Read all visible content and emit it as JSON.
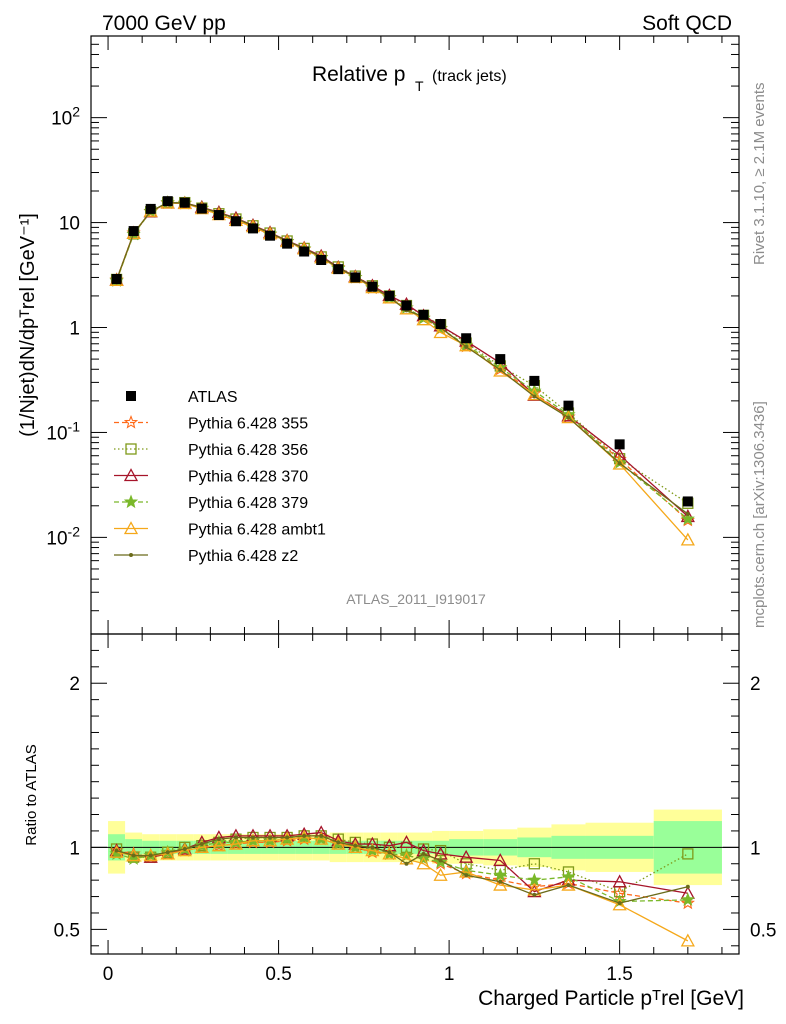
{
  "header": {
    "left": "7000 GeV pp",
    "right": "Soft QCD"
  },
  "side": {
    "rivet": "Rivet 3.1.10, ≥ 2.1M events",
    "mcplots": "mcplots.cern.ch [arXiv:1306.3436]"
  },
  "plot": {
    "title_main": "Relative p",
    "title_sub": "T",
    "title_extra": "(track jets)",
    "watermark": "ATLAS_2011_I919017",
    "ylabel": "(1/Njet)dN/dpᵀrel [GeV⁻¹]",
    "ratio_ylabel": "Ratio to ATLAS",
    "xlabel": "Charged Particle pᵀrel [GeV]"
  },
  "legend": [
    {
      "name": "ATLAS",
      "color": "#000000",
      "marker": "square"
    },
    {
      "name": "Pythia 6.428 355",
      "color": "#ff6a1a",
      "marker": "star-open"
    },
    {
      "name": "Pythia 6.428 356",
      "color": "#7f9a1a",
      "marker": "square-open"
    },
    {
      "name": "Pythia 6.428 370",
      "color": "#a6142a",
      "marker": "triangle-open"
    },
    {
      "name": "Pythia 6.428 379",
      "color": "#7ab82a",
      "marker": "star"
    },
    {
      "name": "Pythia 6.428 ambt1",
      "color": "#f5a81a",
      "marker": "triangle-open"
    },
    {
      "name": "Pythia 6.428 z2",
      "color": "#6b6b1a",
      "marker": "dot"
    }
  ],
  "chart_data": {
    "type": "scatter",
    "xlabel": "Charged Particle p_T rel [GeV]",
    "ylabel": "(1/Njet)dN/dp_T rel [GeV^-1]",
    "ylog": true,
    "xlim": [
      -0.05,
      1.85
    ],
    "ylim": [
      0.0012,
      600
    ],
    "ratio_ylim": [
      0.35,
      2.3
    ],
    "x_ticks": [
      "0",
      "0.5",
      "1",
      "1.5"
    ],
    "y_ticks": [
      "10^-2",
      "10^-1",
      "1",
      "10",
      "10^2"
    ],
    "ratio_ticks": [
      "0.5",
      "1",
      "2"
    ],
    "x": [
      0.025,
      0.075,
      0.125,
      0.175,
      0.225,
      0.275,
      0.325,
      0.375,
      0.425,
      0.475,
      0.525,
      0.575,
      0.625,
      0.675,
      0.725,
      0.775,
      0.825,
      0.875,
      0.925,
      0.975,
      1.05,
      1.15,
      1.25,
      1.35,
      1.5,
      1.7
    ],
    "data_values": [
      2.9,
      8.3,
      13.5,
      16.0,
      15.5,
      13.6,
      11.8,
      10.3,
      8.8,
      7.5,
      6.3,
      5.3,
      4.4,
      3.6,
      3.0,
      2.45,
      2.0,
      1.62,
      1.32,
      1.08,
      0.79,
      0.5,
      0.31,
      0.18,
      0.077,
      0.022
    ],
    "band_x_edges": [
      0,
      0.05,
      0.1,
      0.15,
      0.2,
      0.25,
      0.3,
      0.35,
      0.4,
      0.45,
      0.5,
      0.55,
      0.6,
      0.65,
      0.7,
      0.75,
      0.8,
      0.85,
      0.9,
      0.95,
      1.0,
      1.1,
      1.2,
      1.3,
      1.4,
      1.6,
      1.8
    ],
    "band_stat": [
      0.08,
      0.05,
      0.04,
      0.04,
      0.04,
      0.04,
      0.04,
      0.04,
      0.04,
      0.04,
      0.04,
      0.04,
      0.04,
      0.04,
      0.04,
      0.04,
      0.04,
      0.04,
      0.04,
      0.04,
      0.05,
      0.05,
      0.06,
      0.07,
      0.07,
      0.16
    ],
    "band_total": [
      0.16,
      0.09,
      0.08,
      0.08,
      0.08,
      0.08,
      0.08,
      0.08,
      0.08,
      0.08,
      0.08,
      0.08,
      0.08,
      0.09,
      0.09,
      0.09,
      0.09,
      0.09,
      0.09,
      0.1,
      0.1,
      0.11,
      0.12,
      0.14,
      0.15,
      0.23
    ],
    "series": [
      {
        "name": "Pythia 6.428 355",
        "values": [
          0.98,
          0.96,
          0.94,
          0.96,
          0.98,
          1.0,
          1.01,
          1.02,
          1.03,
          1.03,
          1.04,
          1.05,
          1.06,
          1.03,
          1.0,
          0.97,
          0.96,
          0.95,
          0.93,
          0.9,
          0.84,
          0.8,
          0.76,
          0.78,
          0.72,
          0.66
        ]
      },
      {
        "name": "Pythia 6.428 356",
        "values": [
          0.99,
          0.94,
          0.94,
          0.97,
          1.0,
          1.01,
          1.03,
          1.05,
          1.06,
          1.06,
          1.06,
          1.07,
          1.07,
          1.05,
          1.03,
          1.02,
          1.0,
          1.0,
          0.99,
          0.98,
          0.9,
          0.86,
          0.9,
          0.85,
          0.73,
          0.96
        ]
      },
      {
        "name": "Pythia 6.428 370",
        "values": [
          0.98,
          0.95,
          0.94,
          0.96,
          0.99,
          1.03,
          1.06,
          1.07,
          1.07,
          1.07,
          1.07,
          1.08,
          1.09,
          1.04,
          1.02,
          1.02,
          1.01,
          1.03,
          0.98,
          0.96,
          0.94,
          0.92,
          0.73,
          0.8,
          0.79,
          0.72
        ]
      },
      {
        "name": "Pythia 6.428 379",
        "values": [
          0.96,
          0.93,
          0.95,
          0.97,
          0.99,
          1.01,
          1.03,
          1.03,
          1.04,
          1.04,
          1.05,
          1.06,
          1.05,
          1.02,
          1.0,
          0.98,
          0.96,
          0.95,
          0.93,
          0.91,
          0.86,
          0.83,
          0.8,
          0.82,
          0.67,
          0.68
        ]
      },
      {
        "name": "Pythia 6.428 ambt1",
        "values": [
          0.97,
          0.95,
          0.95,
          0.96,
          0.98,
          1.0,
          1.01,
          1.02,
          1.04,
          1.04,
          1.05,
          1.06,
          1.05,
          1.02,
          1.0,
          0.98,
          0.96,
          0.93,
          0.9,
          0.83,
          0.85,
          0.77,
          0.74,
          0.77,
          0.65,
          0.43
        ]
      },
      {
        "name": "Pythia 6.428 z2",
        "values": [
          0.98,
          0.95,
          0.95,
          0.97,
          0.99,
          1.02,
          1.05,
          1.06,
          1.06,
          1.06,
          1.06,
          1.07,
          1.07,
          1.03,
          1.01,
          1.0,
          0.97,
          0.9,
          0.96,
          0.92,
          0.83,
          0.79,
          0.71,
          0.77,
          0.66,
          0.76
        ]
      }
    ]
  }
}
